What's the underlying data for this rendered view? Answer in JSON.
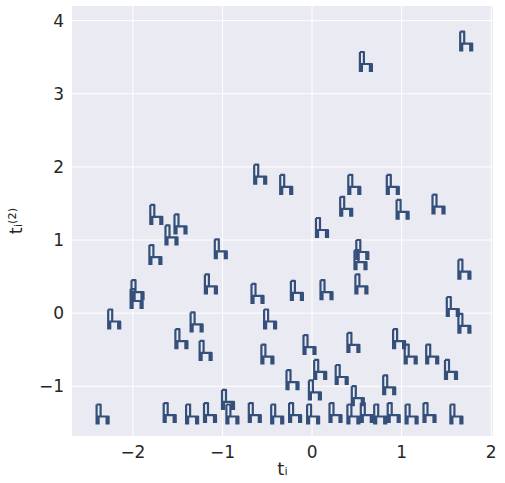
{
  "chart_data": {
    "type": "scatter",
    "marker": "chair",
    "color": "#34507a",
    "grid": true,
    "x_label": "tᵢ",
    "y_label": "tᵢ⁽²⁾",
    "x": [
      1.71,
      0.59,
      -0.59,
      -0.3,
      0.46,
      0.89,
      0.37,
      1.4,
      1.0,
      0.1,
      -1.75,
      -1.58,
      -1.48,
      -1.96,
      -1.76,
      -1.97,
      -2.22,
      -1.14,
      -1.03,
      -0.18,
      -0.62,
      0.53,
      0.55,
      0.54,
      0.15,
      1.69,
      1.56,
      1.69,
      -0.48,
      -1.3,
      -1.47,
      -1.2,
      -0.51,
      -0.04,
      0.45,
      0.32,
      0.96,
      1.09,
      1.33,
      1.54,
      0.85,
      0.08,
      -0.23,
      0.02,
      -2.35,
      -1.6,
      -1.35,
      -1.15,
      -0.9,
      -0.65,
      -0.4,
      -0.2,
      0.0,
      0.25,
      0.45,
      0.6,
      0.75,
      0.9,
      1.1,
      1.3,
      1.6,
      -0.95,
      0.5
    ],
    "values": [
      3.7,
      3.42,
      1.88,
      1.74,
      1.74,
      1.74,
      1.44,
      1.47,
      1.4,
      1.15,
      1.33,
      1.05,
      1.2,
      0.3,
      0.78,
      0.18,
      -0.1,
      0.38,
      0.86,
      0.29,
      0.25,
      0.71,
      0.85,
      0.38,
      0.3,
      0.58,
      0.07,
      -0.16,
      -0.1,
      -0.14,
      -0.37,
      -0.53,
      -0.58,
      -0.45,
      -0.42,
      -0.86,
      -0.37,
      -0.58,
      -0.58,
      -0.79,
      -1.0,
      -0.79,
      -0.93,
      -1.07,
      -1.4,
      -1.38,
      -1.4,
      -1.38,
      -1.4,
      -1.38,
      -1.4,
      -1.38,
      -1.4,
      -1.38,
      -1.4,
      -1.38,
      -1.4,
      -1.38,
      -1.4,
      -1.38,
      -1.4,
      -1.2,
      -1.15
    ],
    "xlim": [
      -2.68,
      2.02
    ],
    "ylim": [
      -1.68,
      4.2
    ],
    "xticks": [
      {
        "value": -2,
        "label": "−2"
      },
      {
        "value": -1,
        "label": "−1"
      },
      0,
      1,
      2
    ],
    "yticks": [
      {
        "value": -1,
        "label": "−1"
      },
      0,
      1,
      2,
      3,
      4
    ]
  }
}
